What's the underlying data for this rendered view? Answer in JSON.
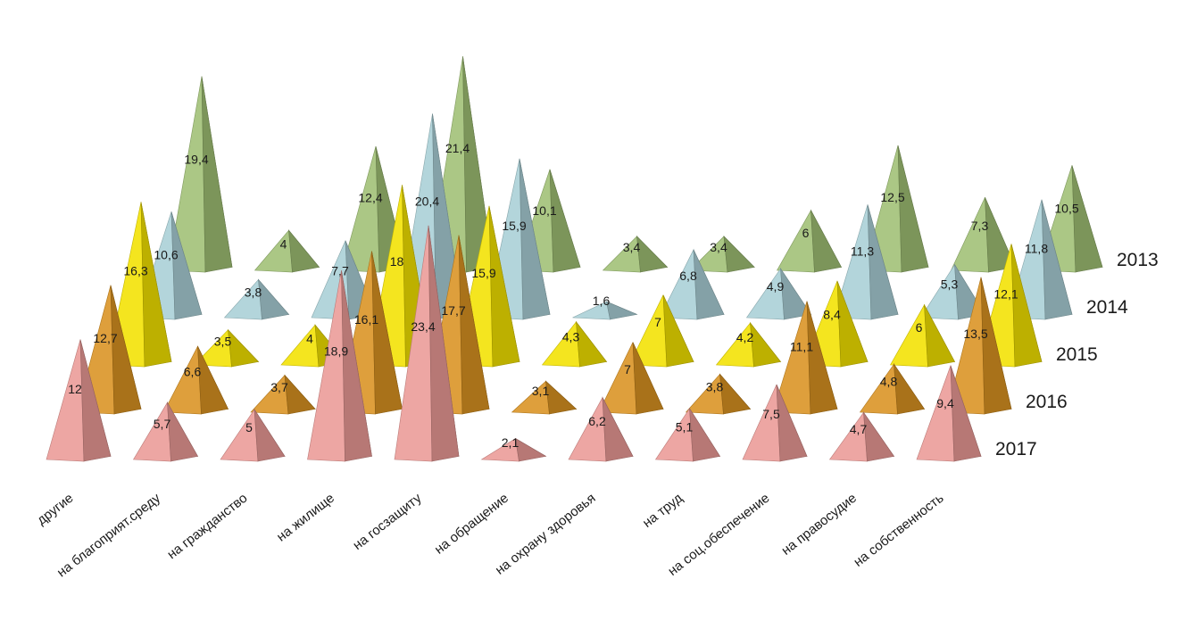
{
  "chart_data": {
    "type": "bar",
    "style": "3d-pyramid",
    "categories": [
      "другие",
      "на благоприят.среду",
      "на гражданство",
      "на жилище",
      "на госзащиту",
      "на обращение",
      "на охрану здоровья",
      "на труд",
      "на соц.обеспечение",
      "на правосудие",
      "на собственность"
    ],
    "series": [
      {
        "name": "2013",
        "color": "#9fbf74",
        "values": [
          19.4,
          4,
          12.4,
          21.4,
          10.1,
          3.4,
          3.4,
          6,
          12.5,
          7.3,
          10.5
        ],
        "labels": [
          "19,4",
          "4",
          "12,4",
          "21,4",
          "10,1",
          "3,4",
          "3,4",
          "6",
          "12,5",
          "7,3",
          "10,5"
        ]
      },
      {
        "name": "2014",
        "color": "#a9cfd6",
        "values": [
          10.6,
          3.8,
          7.7,
          20.4,
          15.9,
          1.6,
          6.8,
          4.9,
          11.3,
          5.3,
          11.8
        ],
        "labels": [
          "10,6",
          "3,8",
          "7,7",
          "20,4",
          "15,9",
          "1,6",
          "6,8",
          "4,9",
          "11,3",
          "5,3",
          "11,8"
        ]
      },
      {
        "name": "2015",
        "color": "#f2e100",
        "values": [
          16.3,
          3.5,
          4,
          18,
          15.9,
          4.3,
          7,
          4.2,
          8.4,
          6,
          12.1
        ],
        "labels": [
          "16,3",
          "3,5",
          "4",
          "18",
          "15,9",
          "4,3",
          "7",
          "4,2",
          "8,4",
          "6",
          "12,1"
        ]
      },
      {
        "name": "2016",
        "color": "#d99221",
        "values": [
          12.7,
          6.6,
          3.7,
          16.1,
          17.7,
          3.1,
          7,
          3.8,
          11.1,
          4.8,
          13.5
        ],
        "labels": [
          "12,7",
          "6,6",
          "3,7",
          "16,1",
          "17,7",
          "3,1",
          "7",
          "3,8",
          "11,1",
          "4,8",
          "13,5"
        ]
      },
      {
        "name": "2017",
        "color": "#ea9a96",
        "values": [
          12,
          5.7,
          5,
          18.9,
          23.4,
          2.1,
          6.2,
          5.1,
          7.5,
          4.7,
          9.4
        ],
        "labels": [
          "12",
          "5,7",
          "5",
          "18,9",
          "23,4",
          "2,1",
          "6,2",
          "5,1",
          "7,5",
          "4,7",
          "9,4"
        ]
      }
    ],
    "grid": false,
    "legend": "series labels at right end of each row"
  }
}
